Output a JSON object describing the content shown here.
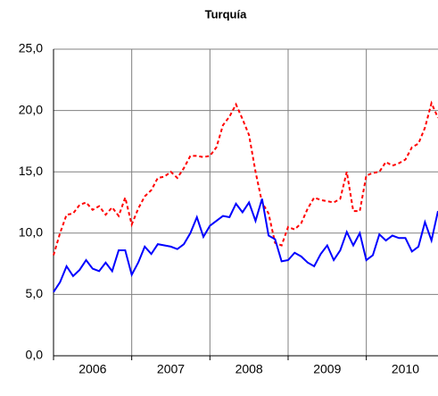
{
  "chart_data": {
    "type": "line",
    "title": "Turquía",
    "categories": [
      null,
      null,
      null,
      null,
      null,
      null,
      "2006",
      null,
      null,
      null,
      null,
      null,
      null,
      null,
      null,
      null,
      null,
      null,
      "2007",
      null,
      null,
      null,
      null,
      null,
      null,
      null,
      null,
      null,
      null,
      null,
      "2008",
      null,
      null,
      null,
      null,
      null,
      null,
      null,
      null,
      null,
      null,
      null,
      "2009",
      null,
      null,
      null,
      null,
      null,
      null,
      null,
      null,
      null,
      null,
      null,
      "2010",
      null,
      null,
      null,
      null,
      null
    ],
    "series": [
      {
        "color": "#ff0000",
        "dashed": true,
        "values": [
          8.2,
          10.0,
          11.5,
          11.6,
          12.3,
          12.5,
          11.9,
          12.2,
          11.5,
          12.1,
          11.4,
          12.9,
          10.7,
          12.0,
          13.0,
          13.5,
          14.5,
          14.6,
          15.0,
          14.5,
          15.3,
          16.3,
          16.3,
          16.2,
          16.3,
          17.0,
          18.8,
          19.5,
          20.5,
          19.3,
          18.0,
          15.0,
          12.5,
          11.6,
          9.2,
          9.0,
          10.5,
          10.3,
          10.8,
          12.0,
          12.9,
          12.7,
          12.6,
          12.5,
          12.8,
          15.0,
          11.8,
          11.8,
          14.7,
          14.9,
          15.0,
          15.8,
          15.5,
          15.7,
          16.0,
          17.0,
          17.3,
          18.6,
          20.6,
          19.4
        ]
      },
      {
        "color": "#0000ff",
        "dashed": false,
        "values": [
          5.2,
          6.0,
          7.3,
          6.5,
          7.0,
          7.8,
          7.1,
          6.9,
          7.6,
          6.9,
          8.6,
          8.6,
          6.6,
          7.6,
          8.9,
          8.3,
          9.1,
          9.0,
          8.9,
          8.7,
          9.1,
          10.0,
          11.3,
          9.7,
          10.6,
          11.0,
          11.4,
          11.3,
          12.4,
          11.7,
          12.5,
          11.0,
          12.8,
          9.8,
          9.5,
          7.7,
          7.8,
          8.4,
          8.1,
          7.6,
          7.3,
          8.3,
          9.0,
          7.8,
          8.6,
          10.1,
          9.0,
          10.0,
          7.8,
          8.2,
          9.9,
          9.4,
          9.8,
          9.6,
          9.6,
          8.5,
          8.9,
          10.9,
          9.4,
          11.8
        ]
      }
    ],
    "ylim": [
      0,
      25
    ],
    "yticks": [
      {
        "value": 0,
        "label": "0,0"
      },
      {
        "value": 5,
        "label": "5,0"
      },
      {
        "value": 10,
        "label": "10,0"
      },
      {
        "value": 15,
        "label": "15,0"
      },
      {
        "value": 20,
        "label": "20,0"
      },
      {
        "value": 25,
        "label": "25,0"
      }
    ],
    "grid": true
  }
}
